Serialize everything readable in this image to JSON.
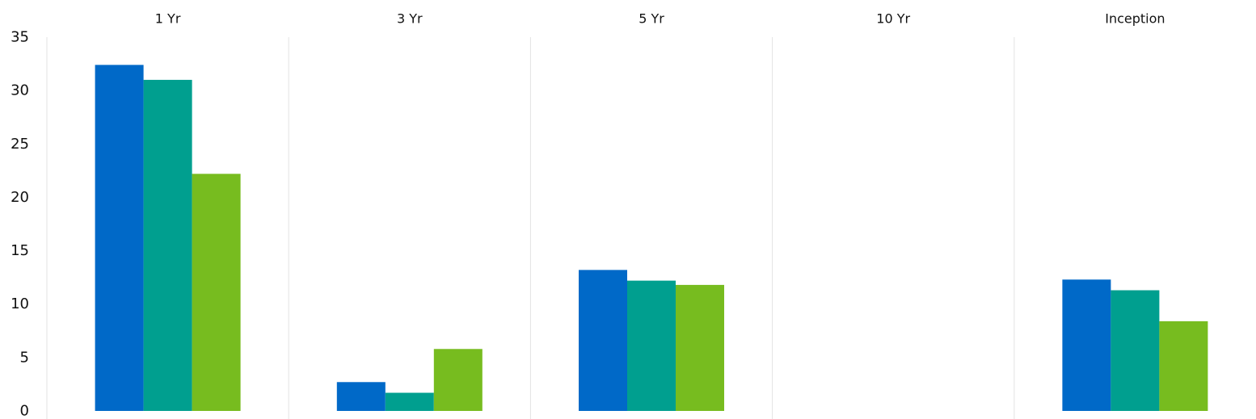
{
  "chart_data": {
    "type": "bar",
    "categories": [
      "1 Yr",
      "3 Yr",
      "5 Yr",
      "10 Yr",
      "Inception"
    ],
    "series": [
      {
        "color": "#0069C8",
        "values": [
          32.4,
          2.7,
          13.2,
          null,
          12.3
        ]
      },
      {
        "color": "#009F8F",
        "values": [
          31.0,
          1.7,
          12.2,
          null,
          11.3
        ]
      },
      {
        "color": "#77BC1F",
        "values": [
          22.2,
          5.8,
          11.8,
          null,
          8.4
        ]
      }
    ],
    "title": "",
    "xlabel": "",
    "ylabel": "",
    "ylim": [
      0,
      35
    ],
    "yticks": [
      "0",
      "5",
      "10",
      "15",
      "20",
      "25",
      "30",
      "35"
    ],
    "x_axis_position": "top",
    "grid": false,
    "category_dividers": true,
    "legend": "none"
  }
}
